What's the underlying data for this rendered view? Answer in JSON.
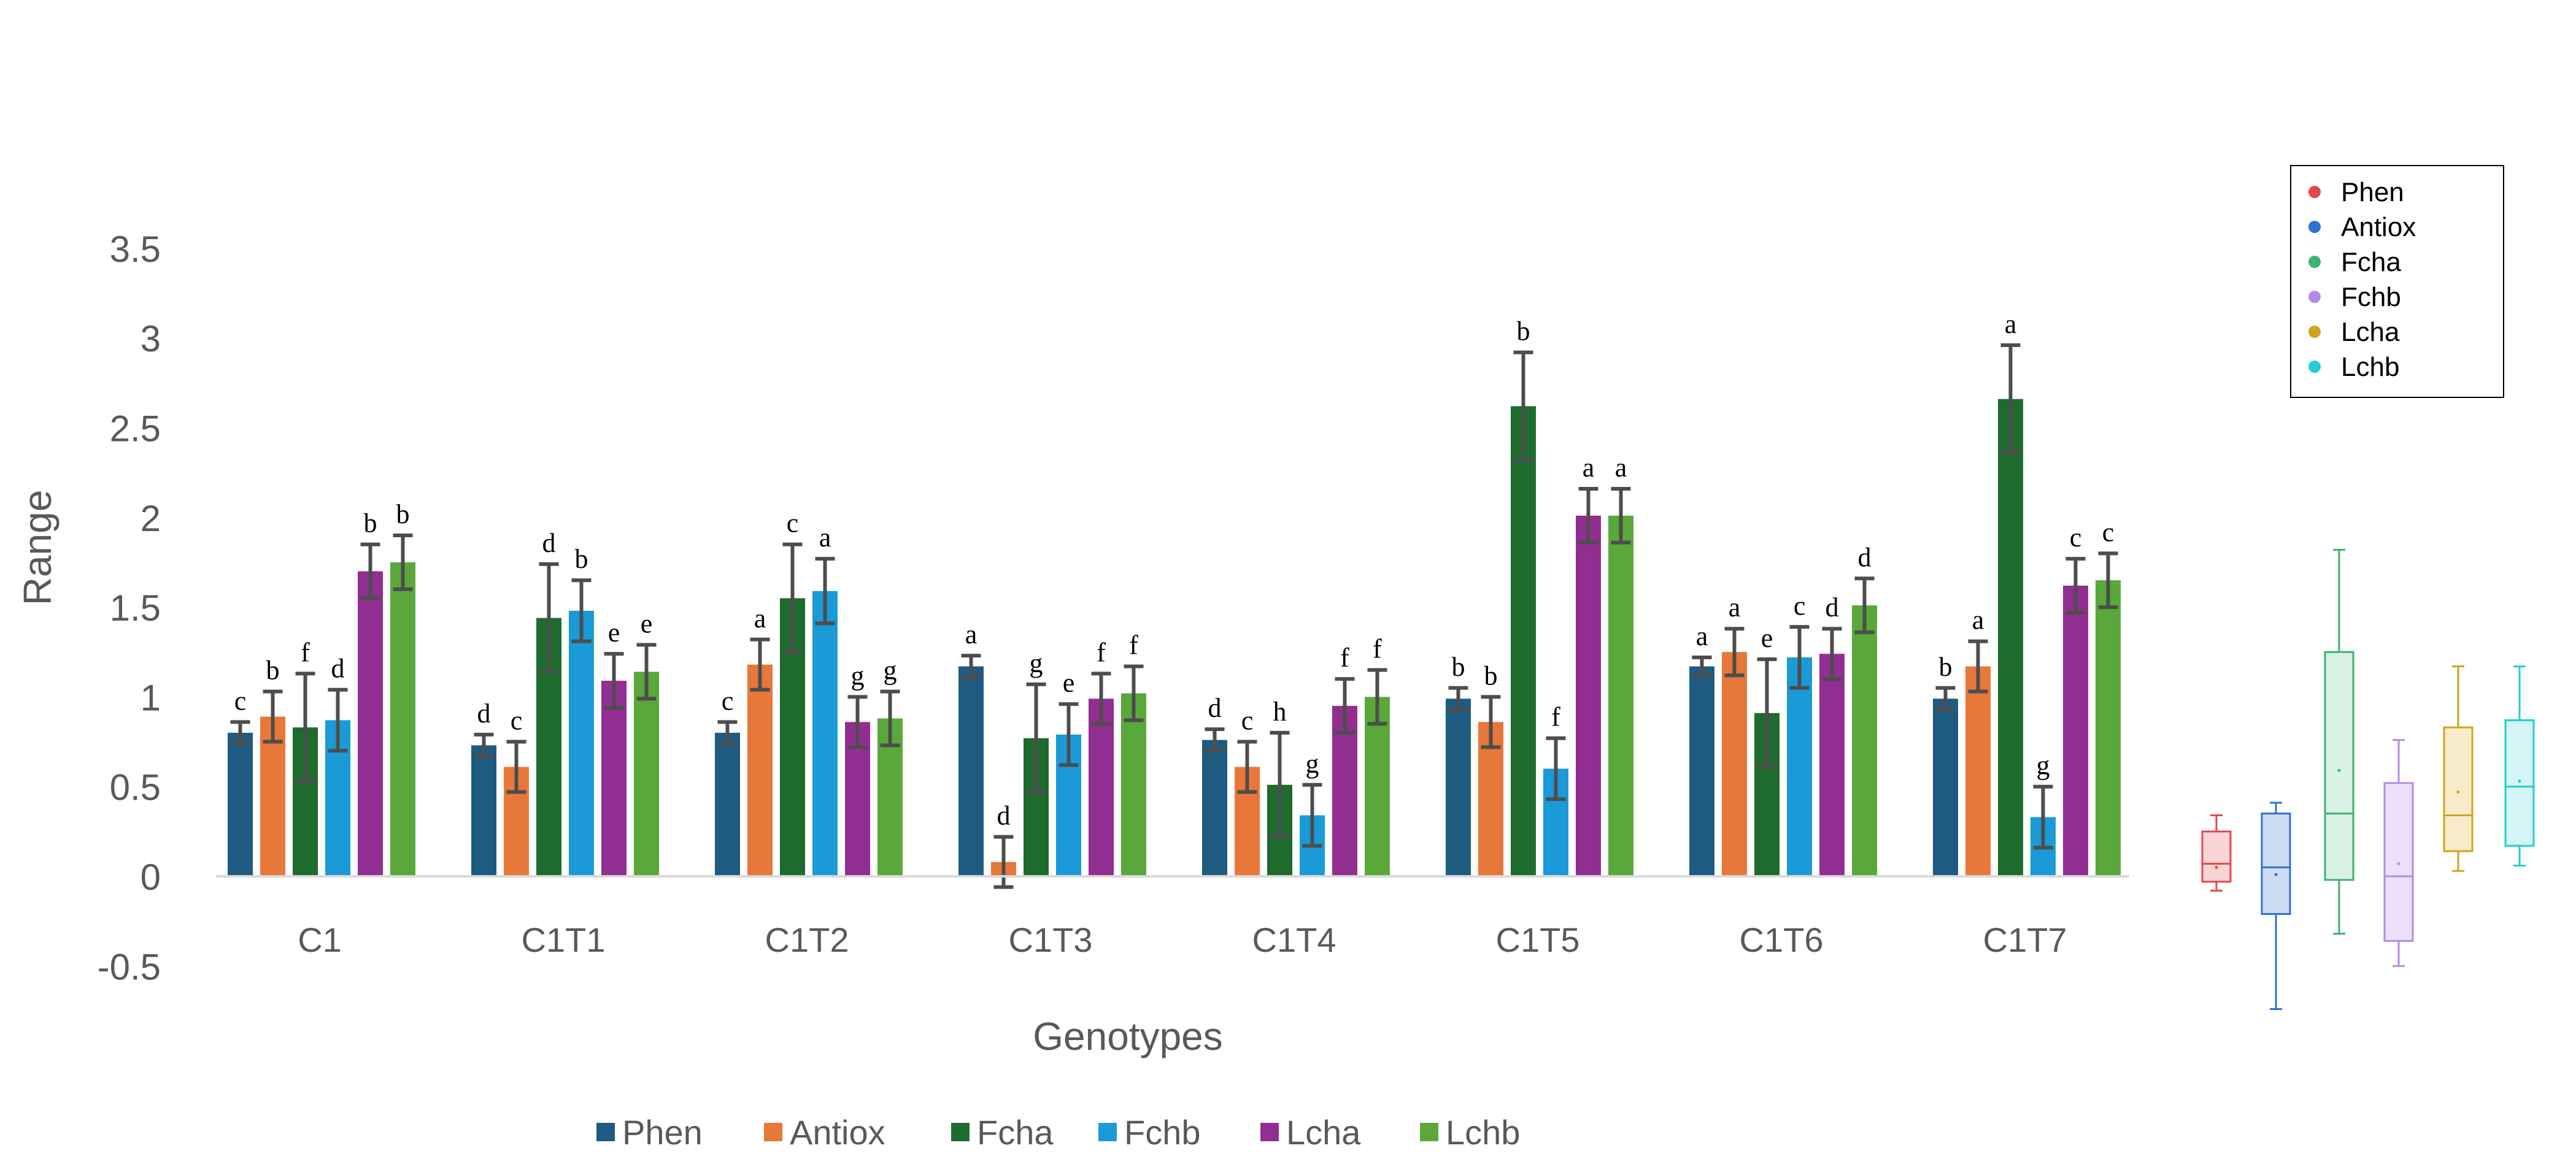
{
  "chart_data": [
    {
      "type": "bar",
      "title": "",
      "xlabel": "Genotypes",
      "ylabel": "Range",
      "ylim": [
        -0.5,
        3.5
      ],
      "yticks": [
        "3.5",
        "3",
        "2.5",
        "2",
        "1.5",
        "1",
        "0.5",
        "0",
        "-0.5"
      ],
      "ytick_values": [
        3.5,
        3,
        2.5,
        2,
        1.5,
        1,
        0.5,
        0,
        -0.5
      ],
      "grid": false,
      "legend_position": "bottom",
      "categories": [
        "C1",
        "C1T1",
        "C1T2",
        "C1T3",
        "C1T4",
        "C1T5",
        "C1T6",
        "C1T7"
      ],
      "series": [
        {
          "name": "Phen",
          "color": "#1f5b80",
          "values": [
            0.8,
            0.73,
            0.8,
            1.17,
            0.76,
            0.99,
            1.17,
            0.99
          ],
          "errors": [
            0.06,
            0.06,
            0.06,
            0.06,
            0.06,
            0.06,
            0.05,
            0.06
          ],
          "letters": [
            "c",
            "d",
            "c",
            "a",
            "d",
            "b",
            "a",
            "b"
          ]
        },
        {
          "name": "Antiox",
          "color": "#e8773a",
          "values": [
            0.89,
            0.61,
            1.18,
            0.08,
            0.61,
            0.86,
            1.25,
            1.17
          ],
          "errors": [
            0.14,
            0.14,
            0.14,
            0.14,
            0.14,
            0.14,
            0.13,
            0.14
          ],
          "letters": [
            "b",
            "c",
            "a",
            "d",
            "c",
            "b",
            "a",
            "a"
          ]
        },
        {
          "name": "Fcha",
          "color": "#1e6b2e",
          "values": [
            0.83,
            1.44,
            1.55,
            0.77,
            0.51,
            2.62,
            0.91,
            2.66
          ],
          "errors": [
            0.3,
            0.3,
            0.3,
            0.3,
            0.29,
            0.3,
            0.3,
            0.3
          ],
          "letters": [
            "f",
            "d",
            "c",
            "g",
            "h",
            "b",
            "e",
            "a"
          ]
        },
        {
          "name": "Fchb",
          "color": "#1a9ad6",
          "values": [
            0.87,
            1.48,
            1.59,
            0.79,
            0.34,
            0.6,
            1.22,
            0.33
          ],
          "errors": [
            0.17,
            0.17,
            0.18,
            0.17,
            0.17,
            0.17,
            0.17,
            0.17
          ],
          "letters": [
            "d",
            "b",
            "a",
            "e",
            "g",
            "f",
            "c",
            "g"
          ]
        },
        {
          "name": "Lcha",
          "color": "#922e91",
          "values": [
            1.7,
            1.09,
            0.86,
            0.99,
            0.95,
            2.01,
            1.24,
            1.62
          ],
          "errors": [
            0.15,
            0.15,
            0.14,
            0.14,
            0.15,
            0.15,
            0.14,
            0.15
          ],
          "letters": [
            "b",
            "e",
            "g",
            "f",
            "f",
            "a",
            "d",
            "c"
          ]
        },
        {
          "name": "Lchb",
          "color": "#5aa83a",
          "values": [
            1.75,
            1.14,
            0.88,
            1.02,
            1.0,
            2.01,
            1.51,
            1.65
          ],
          "errors": [
            0.15,
            0.15,
            0.15,
            0.15,
            0.15,
            0.15,
            0.15,
            0.15
          ],
          "letters": [
            "b",
            "e",
            "g",
            "f",
            "f",
            "a",
            "d",
            "c"
          ]
        }
      ]
    },
    {
      "type": "box",
      "legend_position": "top-right",
      "series": [
        {
          "name": "Phen",
          "color": "#e8474a",
          "fill": "#f6c6c7",
          "min": -0.08,
          "q1": -0.03,
          "median": 0.07,
          "mean": 0.05,
          "q3": 0.25,
          "max": 0.34
        },
        {
          "name": "Antiox",
          "color": "#2f72d1",
          "fill": "#bcd2f0",
          "min": -0.74,
          "q1": -0.21,
          "median": 0.05,
          "mean": 0.01,
          "q3": 0.35,
          "max": 0.41
        },
        {
          "name": "Fcha",
          "color": "#3bb372",
          "fill": "#cfeedd",
          "min": -0.32,
          "q1": -0.02,
          "median": 0.35,
          "mean": 0.59,
          "q3": 1.25,
          "max": 1.82
        },
        {
          "name": "Fchb",
          "color": "#b58ae6",
          "fill": "#e6d6f7",
          "min": -0.5,
          "q1": -0.36,
          "median": 0.0,
          "mean": 0.07,
          "q3": 0.52,
          "max": 0.76
        },
        {
          "name": "Lcha",
          "color": "#d1a21f",
          "fill": "#f4e4b8",
          "min": 0.03,
          "q1": 0.14,
          "median": 0.34,
          "mean": 0.47,
          "q3": 0.83,
          "max": 1.17
        },
        {
          "name": "Lchb",
          "color": "#23cdd3",
          "fill": "#c6f0f2",
          "min": 0.06,
          "q1": 0.17,
          "median": 0.5,
          "mean": 0.53,
          "q3": 0.87,
          "max": 1.17
        }
      ]
    }
  ]
}
